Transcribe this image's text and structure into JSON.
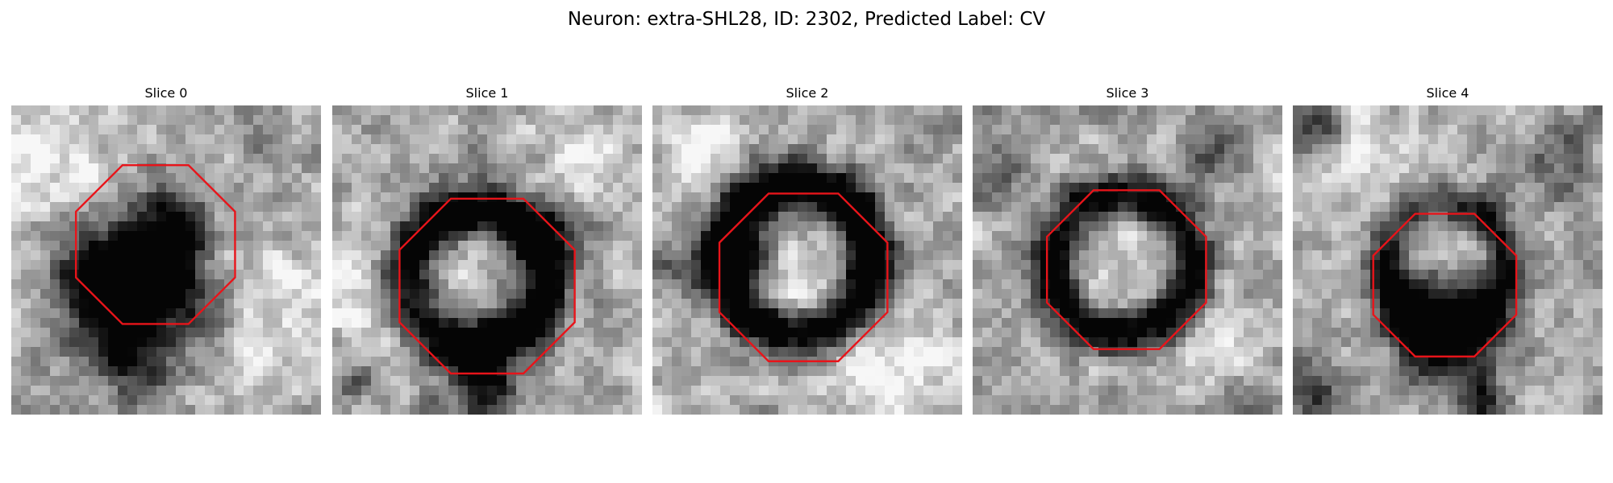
{
  "figure": {
    "title": "Neuron: extra-SHL28, ID: 2302, Predicted Label: CV"
  },
  "colors": {
    "outline": "#e8141a",
    "background": "#ffffff",
    "text": "#000000"
  },
  "panels": [
    {
      "title": "Slice 0"
    },
    {
      "title": "Slice 1"
    },
    {
      "title": "Slice 2"
    },
    {
      "title": "Slice 3"
    },
    {
      "title": "Slice 4"
    }
  ]
}
